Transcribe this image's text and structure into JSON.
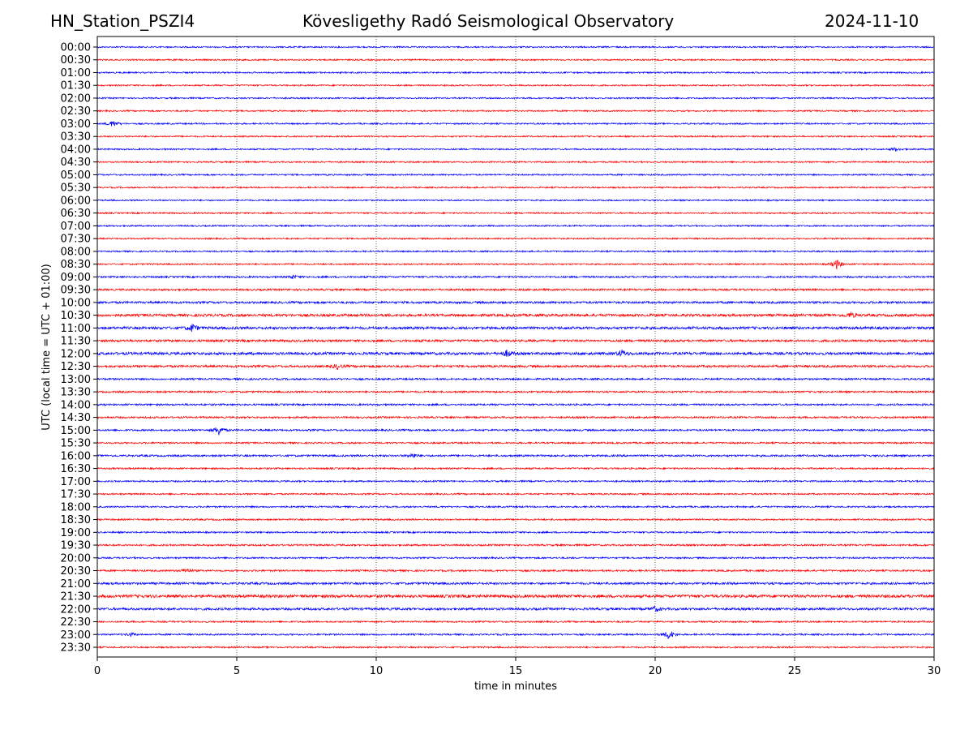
{
  "header": {
    "station": "HN_Station_PSZI4",
    "observatory": "Kövesligethy Radó Seismological Observatory",
    "date": "2024-11-10"
  },
  "chart_data": {
    "type": "line",
    "title": "Kövesligethy Radó Seismological Observatory",
    "xlabel": "time in minutes",
    "ylabel": "UTC (local time = UTC + 01:00)",
    "xlim": [
      0,
      30
    ],
    "x_ticks": [
      "0",
      "5",
      "10",
      "15",
      "20",
      "25",
      "30"
    ],
    "x_tick_values": [
      0,
      5,
      10,
      15,
      20,
      25,
      30
    ],
    "grid": "vertical dotted at x ticks",
    "colors": [
      "#0000ff",
      "#ff0000"
    ],
    "trace_labels": [
      "00:00",
      "00:30",
      "01:00",
      "01:30",
      "02:00",
      "02:30",
      "03:00",
      "03:30",
      "04:00",
      "04:30",
      "05:00",
      "05:30",
      "06:00",
      "06:30",
      "07:00",
      "07:30",
      "08:00",
      "08:30",
      "09:00",
      "09:30",
      "10:00",
      "10:30",
      "11:00",
      "11:30",
      "12:00",
      "12:30",
      "13:00",
      "13:30",
      "14:00",
      "14:30",
      "15:00",
      "15:30",
      "16:00",
      "16:30",
      "17:00",
      "17:30",
      "18:00",
      "18:30",
      "19:00",
      "19:30",
      "20:00",
      "20:30",
      "21:00",
      "21:30",
      "22:00",
      "22:30",
      "23:00",
      "23:30"
    ],
    "noise_level": [
      1,
      1,
      1,
      1,
      1,
      1,
      1,
      1,
      1,
      1,
      1,
      1,
      1,
      1,
      1,
      1,
      1,
      1,
      1.2,
      1.3,
      1.5,
      1.8,
      1.8,
      1.6,
      1.8,
      1.5,
      1.2,
      1.2,
      1.2,
      1.2,
      1.2,
      1.1,
      1.3,
      1.1,
      1.1,
      1.1,
      1.1,
      1.1,
      1.1,
      1.2,
      1.1,
      1.2,
      1.5,
      2,
      1.6,
      1.1,
      1.1,
      1.1
    ],
    "events": [
      {
        "trace": 6,
        "minute": 0.55,
        "amp": 4
      },
      {
        "trace": 8,
        "minute": 28.6,
        "amp": 2
      },
      {
        "trace": 17,
        "minute": 26.5,
        "amp": 6
      },
      {
        "trace": 18,
        "minute": 7.0,
        "amp": 2
      },
      {
        "trace": 21,
        "minute": 27.0,
        "amp": 3
      },
      {
        "trace": 22,
        "minute": 3.4,
        "amp": 5
      },
      {
        "trace": 24,
        "minute": 14.7,
        "amp": 4
      },
      {
        "trace": 24,
        "minute": 18.8,
        "amp": 4
      },
      {
        "trace": 25,
        "minute": 8.6,
        "amp": 3
      },
      {
        "trace": 30,
        "minute": 4.35,
        "amp": 6
      },
      {
        "trace": 32,
        "minute": 11.3,
        "amp": 3
      },
      {
        "trace": 41,
        "minute": 3.2,
        "amp": 3
      },
      {
        "trace": 44,
        "minute": 20.0,
        "amp": 3
      },
      {
        "trace": 46,
        "minute": 20.5,
        "amp": 6
      },
      {
        "trace": 46,
        "minute": 1.2,
        "amp": 2
      }
    ]
  }
}
